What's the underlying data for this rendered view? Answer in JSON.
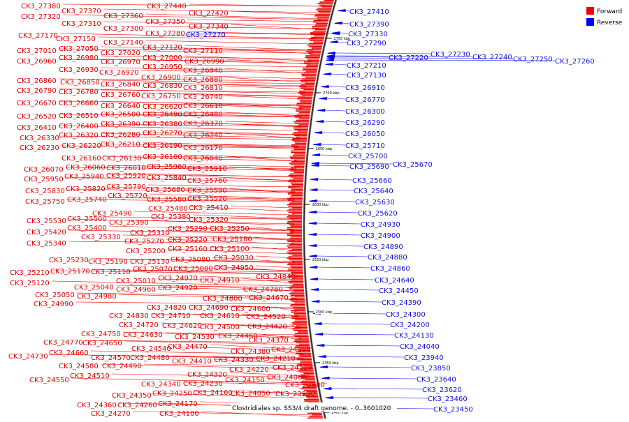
{
  "legend": {
    "forward_label": "Forward",
    "reverse_label": "Reverse",
    "forward_color": "#ee0000",
    "reverse_color": "#0000ee"
  },
  "caption": "Clostridiales sp. SS3/4 draft genome. - 0..3601020",
  "ticks": [
    "2750 kbp",
    "2700 kbp",
    "2650 kbp",
    "2600 kbp",
    "2550 kbp",
    "2500 kbp",
    "2450 kbp",
    "2400 kbp"
  ],
  "forward_labels": [
    "CK3_27380",
    "CK3_27370",
    "CK3_27360",
    "CK3_27440",
    "CK3_27420",
    "CK3_27320",
    "CK3_27350",
    "CK3_27310",
    "CK3_27340",
    "CK3_27300",
    "CK3_27280",
    "CK3_27170",
    "CK3_27150",
    "CK3_27140",
    "CK3_27120",
    "CK3_27010",
    "CK3_27050",
    "CK3_27110",
    "CK3_27020",
    "CK3_26980",
    "CK3_27000",
    "CK3_26960",
    "CK3_26970",
    "CK3_26990",
    "CK3_26950",
    "CK3_26930",
    "CK3_26940",
    "CK3_26920",
    "CK3_26900",
    "CK3_26880",
    "CK3_26860",
    "CK3_26850",
    "CK3_26840",
    "CK3_26830",
    "CK3_26810",
    "CK3_26790",
    "CK3_26780",
    "CK3_26760",
    "CK3_26750",
    "CK3_26740",
    "CK3_26670",
    "CK3_26660",
    "CK3_26640",
    "CK3_26620",
    "CK3_26610",
    "CK3_26520",
    "CK3_26510",
    "CK3_26500",
    "CK3_26490",
    "CK3_26480",
    "CK3_26410",
    "CK3_26400",
    "CK3_26390",
    "CK3_26380",
    "CK3_26370",
    "CK3_26330",
    "CK3_26320",
    "CK3_26280",
    "CK3_26270",
    "CK3_26240",
    "CK3_26230",
    "CK3_26220",
    "CK3_26210",
    "CK3_26190",
    "CK3_26170",
    "CK3_26160",
    "CK3_26130",
    "CK3_26100",
    "CK3_26040",
    "CK3_26070",
    "CK3_26060",
    "CK3_26010",
    "CK3_25960",
    "CK3_25910",
    "CK3_25950",
    "CK3_25940",
    "CK3_25920",
    "CK3_25840",
    "CK3_25760",
    "CK3_25830",
    "CK3_25820",
    "CK3_25790",
    "CK3_25680",
    "CK3_25590",
    "CK3_25750",
    "CK3_25740",
    "CK3_25720",
    "CK3_25580",
    "CK3_25520",
    "CK3_25480",
    "CK3_25410",
    "CK3_25490",
    "CK3_25530",
    "CK3_25500",
    "CK3_25380",
    "CK3_25390",
    "CK3_25320",
    "CK3_25420",
    "CK3_25400",
    "CK3_25310",
    "CK3_25290",
    "CK3_25250",
    "CK3_25340",
    "CK3_25330",
    "CK3_25270",
    "CK3_25220",
    "CK3_25180",
    "CK3_25200",
    "CK3_25160",
    "CK3_25100",
    "CK3_25230",
    "CK3_25190",
    "CK3_25130",
    "CK3_25080",
    "CK3_25030",
    "CK3_25210",
    "CK3_25170",
    "CK3_25110",
    "CK3_25070",
    "CK3_25000",
    "CK3_24950",
    "CK3_24840",
    "CK3_25120",
    "CK3_25010",
    "CK3_24970",
    "CK3_24910",
    "CK3_25040",
    "CK3_24960",
    "CK3_24920",
    "CK3_24780",
    "CK3_25050",
    "CK3_24980",
    "CK3_24990",
    "CK3_24800",
    "CK3_24670",
    "CK3_24820",
    "CK3_24690",
    "CK3_24600",
    "CK3_24830",
    "CK3_24710",
    "CK3_24610",
    "CK3_24520",
    "CK3_24720",
    "CK3_24620",
    "CK3_24500",
    "CK3_24420",
    "CK3_24750",
    "CK3_24630",
    "CK3_24530",
    "CK3_24460",
    "CK3_24770",
    "CK3_24650",
    "CK3_24470",
    "CK3_24370",
    "CK3_24540",
    "CK3_24380",
    "CK3_24290",
    "CK3_24660",
    "CK3_24730",
    "CK3_24570",
    "CK3_24480",
    "CK3_24410",
    "CK3_24330",
    "CK3_24210",
    "CK3_24580",
    "CK3_24490",
    "CK3_24320",
    "CK3_24220",
    "CK3_24120",
    "CK3_24510",
    "CK3_24550",
    "CK3_24340",
    "CK3_24230",
    "CK3_24150",
    "CK3_24060",
    "CK3_23980",
    "CK3_24350",
    "CK3_24250",
    "CK3_24160",
    "CK3_24050",
    "CK3_23930",
    "CK3_24360",
    "CK3_24260",
    "CK3_24170",
    "CK3_24270",
    "CK3_24100"
  ],
  "reverse_labels": [
    "CK3_27410",
    "CK3_27390",
    "CK3_27330",
    "CK3_27270",
    "CK3_27290",
    "CK3_27220",
    "CK3_27230",
    "CK3_27240",
    "CK3_27250",
    "CK3_27260",
    "CK3_27210",
    "CK3_27130",
    "CK3_26910",
    "CK3_26770",
    "CK3_26300",
    "CK3_26290",
    "CK3_26050",
    "CK3_25710",
    "CK3_25700",
    "CK3_25690",
    "CK3_25670",
    "CK3_25660",
    "CK3_25640",
    "CK3_25630",
    "CK3_25620",
    "CK3_24930",
    "CK3_24900",
    "CK3_24890",
    "CK3_24880",
    "CK3_24860",
    "CK3_24640",
    "CK3_24450",
    "CK3_24390",
    "CK3_24300",
    "CK3_24200",
    "CK3_24130",
    "CK3_24040",
    "CK3_23940",
    "CK3_23850",
    "CK3_23640",
    "CK3_23620",
    "CK3_23460",
    "CK3_23450"
  ]
}
